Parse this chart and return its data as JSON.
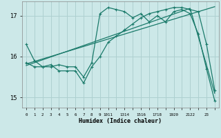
{
  "xlabel": "Humidex (Indice chaleur)",
  "background_color": "#cce8e8",
  "grid_color": "#aed0d0",
  "line_color": "#1a7a6a",
  "xlim": [
    -0.5,
    23.5
  ],
  "ylim": [
    14.75,
    17.35
  ],
  "yticks": [
    15,
    16,
    17
  ],
  "line1_x": [
    0,
    1,
    2,
    3,
    4,
    5,
    6,
    7,
    8,
    9,
    10,
    11,
    12,
    13,
    14,
    15,
    16,
    17,
    18,
    19,
    20,
    21,
    22,
    23
  ],
  "line1_y": [
    16.3,
    15.9,
    15.75,
    15.75,
    15.8,
    15.75,
    15.75,
    15.5,
    15.85,
    17.05,
    17.2,
    17.15,
    17.1,
    16.95,
    17.05,
    16.85,
    17.0,
    16.85,
    17.1,
    17.15,
    17.05,
    16.55,
    15.7,
    14.92
  ],
  "line2_x": [
    0,
    1,
    2,
    3,
    4,
    5,
    6,
    7,
    8,
    9,
    10,
    11,
    12,
    13,
    14,
    15,
    16,
    17,
    18,
    19,
    20,
    21,
    22,
    23
  ],
  "line2_y": [
    15.85,
    15.75,
    15.75,
    15.8,
    15.65,
    15.65,
    15.65,
    15.35,
    15.75,
    16.0,
    16.35,
    16.5,
    16.65,
    16.8,
    16.95,
    17.05,
    17.1,
    17.15,
    17.2,
    17.2,
    17.15,
    17.1,
    16.3,
    15.18
  ],
  "line3_x": [
    0,
    23
  ],
  "line3_y": [
    15.82,
    17.22
  ],
  "line4_x": [
    0,
    20,
    23
  ],
  "line4_y": [
    15.78,
    17.18,
    15.1
  ],
  "custom_xtick_positions": [
    0,
    1,
    2,
    3,
    4,
    5,
    6,
    7,
    8,
    9,
    10,
    11,
    12,
    13,
    14,
    15,
    16,
    17,
    18,
    19,
    20,
    21,
    22,
    23
  ],
  "custom_xtick_labels": [
    "0",
    "1",
    "2",
    "3",
    "4",
    "5",
    "6",
    "7",
    "8",
    "9",
    "1011",
    "",
    "1314",
    "",
    "1516",
    "",
    "1718",
    "",
    "1920",
    "",
    "2122",
    "",
    "23",
    ""
  ]
}
